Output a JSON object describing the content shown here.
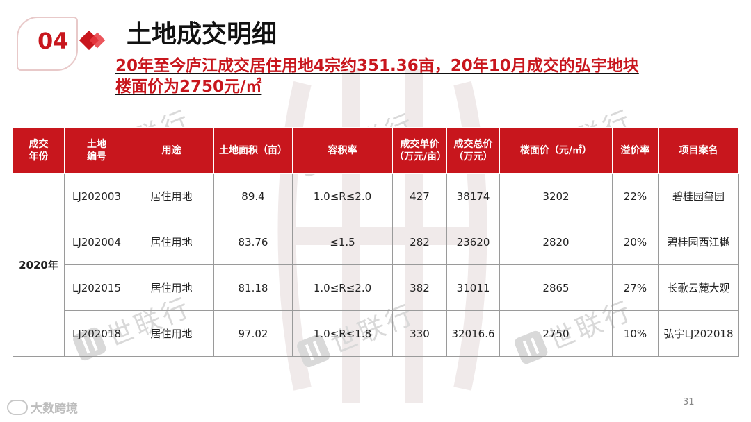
{
  "header": {
    "section_number": "04",
    "title": "土地成交明细",
    "subtitle_line1": "20年至今庐江成交居住用地4宗约351.36亩，20年10月成交的弘宇地块",
    "subtitle_line2": "楼面价为2750元/㎡"
  },
  "table": {
    "headers": [
      {
        "line1": "成交",
        "line2": "年份"
      },
      {
        "line1": "土地",
        "line2": "编号"
      },
      {
        "line1": "用途",
        "line2": ""
      },
      {
        "line1": "土地面积（亩）",
        "line2": ""
      },
      {
        "line1": "容积率",
        "line2": ""
      },
      {
        "line1": "成交单价",
        "line2": "（万元/亩）"
      },
      {
        "line1": "成交总价",
        "line2": "（万元）"
      },
      {
        "line1": "楼面价（元/㎡）",
        "line2": ""
      },
      {
        "line1": "溢价率",
        "line2": ""
      },
      {
        "line1": "项目案名",
        "line2": ""
      }
    ],
    "year": "2020年",
    "rows": [
      {
        "code": "LJ202003",
        "use": "居住用地",
        "area": "89.4",
        "far": "1.0≤R≤2.0",
        "unit_price": "427",
        "total_price": "38174",
        "floor_price": "3202",
        "premium": "22%",
        "project": "碧桂园玺园"
      },
      {
        "code": "LJ202004",
        "use": "居住用地",
        "area": "83.76",
        "far": "≤1.5",
        "unit_price": "282",
        "total_price": "23620",
        "floor_price": "2820",
        "premium": "20%",
        "project": "碧桂园西江樾"
      },
      {
        "code": "LJ202015",
        "use": "居住用地",
        "area": "81.18",
        "far": "1.0≤R≤2.0",
        "unit_price": "382",
        "total_price": "31011",
        "floor_price": "2865",
        "premium": "27%",
        "project": "长歌云麓大观"
      },
      {
        "code": "LJ202018",
        "use": "居住用地",
        "area": "97.02",
        "far": "1.0≤R≤1.8",
        "unit_price": "330",
        "total_price": "32016.6",
        "floor_price": "2750",
        "premium": "10%",
        "project": "弘宇LJ202018"
      }
    ]
  },
  "watermark": {
    "text": "世联行",
    "icon": "shilian-logo-icon"
  },
  "footer": {
    "brand": "大数跨境",
    "page_number": "31"
  },
  "colors": {
    "accent": "#c8161d",
    "header_text": "#ffffff",
    "watermark": "#d9d9d9"
  }
}
